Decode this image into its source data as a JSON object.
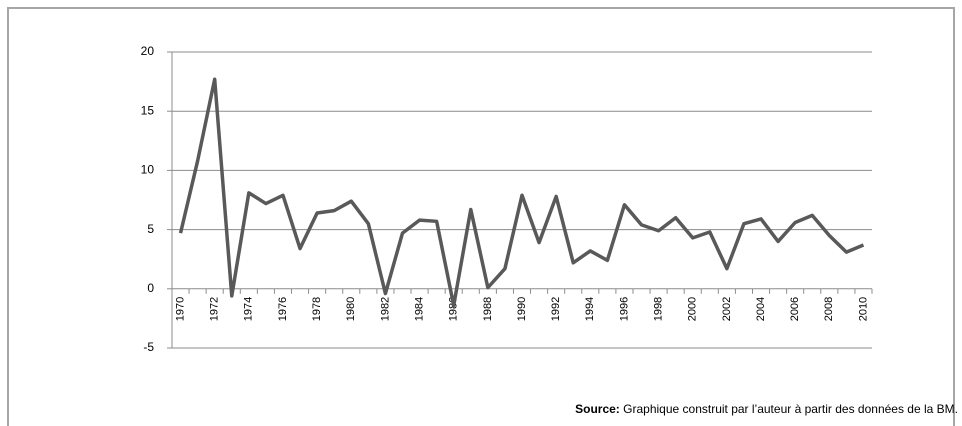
{
  "chart_data": {
    "type": "line",
    "categories": [
      "1970",
      null,
      "1972",
      null,
      "1974",
      null,
      "1976",
      null,
      "1978",
      null,
      "1980",
      null,
      "1982",
      null,
      "1984",
      null,
      "1986",
      null,
      "1988",
      null,
      "1990",
      null,
      "1992",
      null,
      "1994",
      null,
      "1996",
      null,
      "1998",
      null,
      "2000",
      null,
      "2002",
      null,
      "2004",
      null,
      "2006",
      null,
      "2008",
      null,
      "2010"
    ],
    "series": [
      {
        "color": "#595959",
        "values": [
          4.7,
          10.8,
          17.7,
          -0.6,
          8.1,
          7.2,
          7.9,
          3.4,
          6.4,
          6.6,
          7.4,
          5.5,
          -0.4,
          4.7,
          5.8,
          5.7,
          -1.4,
          6.7,
          0.1,
          1.7,
          7.9,
          3.9,
          7.8,
          2.2,
          3.2,
          2.4,
          7.1,
          5.4,
          4.9,
          6.0,
          4.3,
          4.8,
          1.7,
          5.5,
          5.9,
          4.0,
          5.6,
          6.2,
          4.5,
          3.1,
          3.7
        ]
      }
    ],
    "ylim": [
      -5,
      20
    ],
    "yticks": [
      -5,
      0,
      5,
      10,
      15,
      20
    ],
    "grid": true,
    "note_label": "Source:",
    "note": "Graphique construit par l’auteur à partir des données de la BM."
  }
}
